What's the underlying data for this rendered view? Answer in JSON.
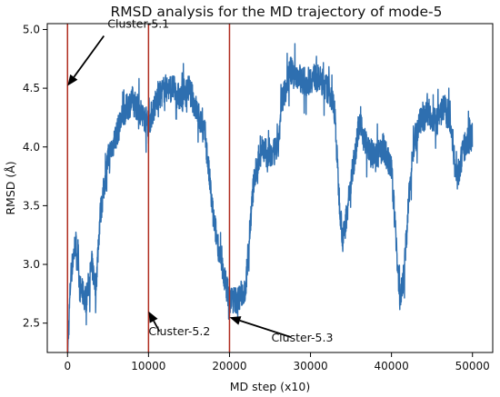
{
  "chart_data": {
    "type": "line",
    "title": "RMSD analysis for the MD trajectory of mode-5",
    "xlabel": "MD step (x10)",
    "ylabel": "RMSD (Å)",
    "xlim": [
      -2500,
      52500
    ],
    "ylim": [
      2.25,
      5.05
    ],
    "xticks": [
      0,
      10000,
      20000,
      30000,
      40000,
      50000
    ],
    "xtick_labels": [
      "0",
      "10000",
      "20000",
      "30000",
      "40000",
      "50000"
    ],
    "yticks": [
      2.5,
      3.0,
      3.5,
      4.0,
      4.5,
      5.0
    ],
    "ytick_labels": [
      "2.5",
      "3.0",
      "3.5",
      "4.0",
      "4.5",
      "5.0"
    ],
    "grid": false,
    "series": [
      {
        "color": "#2e6fb0",
        "points": [
          [
            0,
            2.2
          ],
          [
            400,
            2.9
          ],
          [
            1000,
            3.2
          ],
          [
            1500,
            2.8
          ],
          [
            2300,
            2.7
          ],
          [
            3000,
            3.0
          ],
          [
            3500,
            2.8
          ],
          [
            4000,
            3.4
          ],
          [
            5000,
            3.9
          ],
          [
            6000,
            4.1
          ],
          [
            7000,
            4.3
          ],
          [
            8000,
            4.4
          ],
          [
            9000,
            4.3
          ],
          [
            10000,
            4.2
          ],
          [
            11000,
            4.4
          ],
          [
            12000,
            4.5
          ],
          [
            13000,
            4.5
          ],
          [
            14000,
            4.4
          ],
          [
            15000,
            4.5
          ],
          [
            16000,
            4.3
          ],
          [
            17000,
            4.1
          ],
          [
            18000,
            3.4
          ],
          [
            19000,
            3.0
          ],
          [
            20000,
            2.7
          ],
          [
            21000,
            2.7
          ],
          [
            22000,
            2.8
          ],
          [
            22500,
            3.3
          ],
          [
            23000,
            3.7
          ],
          [
            24000,
            4.0
          ],
          [
            25000,
            3.9
          ],
          [
            26000,
            4.0
          ],
          [
            26500,
            4.4
          ],
          [
            27500,
            4.65
          ],
          [
            28500,
            4.6
          ],
          [
            29500,
            4.55
          ],
          [
            30500,
            4.6
          ],
          [
            31500,
            4.55
          ],
          [
            32500,
            4.45
          ],
          [
            33000,
            4.3
          ],
          [
            33500,
            3.6
          ],
          [
            34000,
            3.2
          ],
          [
            35000,
            3.7
          ],
          [
            36000,
            4.2
          ],
          [
            37000,
            4.0
          ],
          [
            38000,
            3.9
          ],
          [
            39000,
            4.0
          ],
          [
            40000,
            3.8
          ],
          [
            40500,
            3.3
          ],
          [
            41000,
            2.7
          ],
          [
            41500,
            2.9
          ],
          [
            42500,
            3.9
          ],
          [
            43500,
            4.2
          ],
          [
            44500,
            4.3
          ],
          [
            45500,
            4.2
          ],
          [
            46500,
            4.35
          ],
          [
            47500,
            4.1
          ],
          [
            48000,
            3.7
          ],
          [
            49000,
            4.0
          ],
          [
            50000,
            4.1
          ]
        ]
      }
    ],
    "markers": [
      {
        "x": 0,
        "color": "#b02c1f"
      },
      {
        "x": 10000,
        "color": "#b02c1f"
      },
      {
        "x": 20000,
        "color": "#b02c1f"
      }
    ],
    "annotations": [
      {
        "text": "Cluster-5.1",
        "x": 0,
        "y": 4.52
      },
      {
        "text": "Cluster-5.2",
        "x": 10000,
        "y": 2.6
      },
      {
        "text": "Cluster-5.3",
        "x": 20000,
        "y": 2.55
      }
    ]
  }
}
